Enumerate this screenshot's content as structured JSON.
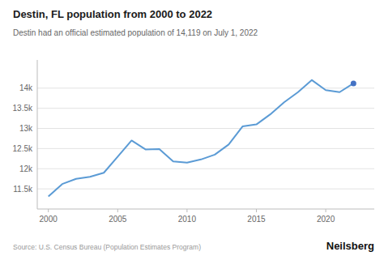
{
  "chart_data": {
    "type": "line",
    "title": "Destin, FL population from 2000 to 2022",
    "subtitle": "Destin had an official estimated population of 14,119 on July 1, 2022",
    "source": "Source: U.S. Census Bureau (Population Estimates Program)",
    "brand": "Neilsberg",
    "x": [
      2000,
      2001,
      2002,
      2003,
      2004,
      2005,
      2006,
      2007,
      2008,
      2009,
      2010,
      2011,
      2012,
      2013,
      2014,
      2015,
      2016,
      2017,
      2018,
      2019,
      2020,
      2021,
      2022
    ],
    "series": [
      {
        "type": "line",
        "color": "#5b9bd5",
        "values": [
          11310,
          11620,
          11750,
          11800,
          11900,
          12300,
          12700,
          12480,
          12490,
          12180,
          12150,
          12230,
          12350,
          12600,
          13050,
          13100,
          13350,
          13650,
          13900,
          14200,
          13950,
          13900,
          14119
        ]
      },
      {
        "type": "scatter",
        "color": "#4472c4",
        "values": [
          null,
          null,
          null,
          null,
          null,
          null,
          null,
          null,
          null,
          null,
          null,
          null,
          null,
          null,
          null,
          null,
          null,
          null,
          null,
          null,
          null,
          null,
          14119
        ]
      }
    ],
    "xlim": [
      1999.2,
      2023.5
    ],
    "xticks": [
      2000,
      2005,
      2010,
      2015,
      2020
    ],
    "ylim": [
      11000,
      14700
    ],
    "yticks": [
      {
        "value": 11500,
        "label": "11.5k"
      },
      {
        "value": 12000,
        "label": "12k"
      },
      {
        "value": 12500,
        "label": "12.5k"
      },
      {
        "value": 13000,
        "label": "13k"
      },
      {
        "value": 13500,
        "label": "13.5k"
      },
      {
        "value": 14000,
        "label": "14k"
      }
    ],
    "grid": true
  }
}
